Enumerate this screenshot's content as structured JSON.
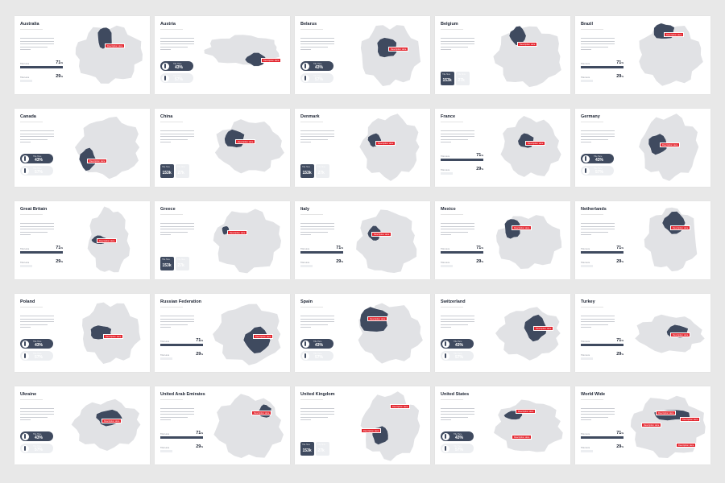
{
  "colors": {
    "accent_dark": "#3f4a5f",
    "accent_red": "#e3262f",
    "map_gray": "#e1e2e5",
    "faded": "#eceef1"
  },
  "slides": [
    {
      "title": "Australia",
      "stat_type": "bars",
      "tags": [
        "Description Here"
      ]
    },
    {
      "title": "Austria",
      "stat_type": "people",
      "tags": [
        "Description Here"
      ]
    },
    {
      "title": "Belarus",
      "stat_type": "people",
      "tags": [
        "Description Here"
      ]
    },
    {
      "title": "Belgium",
      "stat_type": "boxes",
      "tags": [
        "Description Here"
      ]
    },
    {
      "title": "Brazil",
      "stat_type": "bars",
      "tags": [
        "Description Here"
      ]
    },
    {
      "title": "Canada",
      "stat_type": "people",
      "tags": [
        "Description Here"
      ]
    },
    {
      "title": "China",
      "stat_type": "boxes",
      "tags": [
        "Description Here"
      ]
    },
    {
      "title": "Denmark",
      "stat_type": "boxes",
      "tags": [
        "Description Here"
      ]
    },
    {
      "title": "France",
      "stat_type": "bars",
      "tags": [
        "Description Here"
      ]
    },
    {
      "title": "Germany",
      "stat_type": "people",
      "tags": [
        "Description Here"
      ]
    },
    {
      "title": "Great Britain",
      "stat_type": "bars",
      "tags": [
        "Description Here"
      ]
    },
    {
      "title": "Greece",
      "stat_type": "boxes",
      "tags": [
        "Description Here"
      ]
    },
    {
      "title": "Italy",
      "stat_type": "bars",
      "tags": [
        "Description Here"
      ]
    },
    {
      "title": "Mexico",
      "stat_type": "bars",
      "tags": [
        "Description Here"
      ]
    },
    {
      "title": "Netherlands",
      "stat_type": "bars",
      "tags": [
        "Description Here"
      ]
    },
    {
      "title": "Poland",
      "stat_type": "people",
      "tags": [
        "Description Here"
      ]
    },
    {
      "title": "Russian Federation",
      "stat_type": "bars",
      "tags": [
        "Description Here"
      ]
    },
    {
      "title": "Spain",
      "stat_type": "people",
      "tags": [
        "Description Here"
      ]
    },
    {
      "title": "Switzerland",
      "stat_type": "people",
      "tags": [
        "Description Here"
      ]
    },
    {
      "title": "Turkey",
      "stat_type": "bars",
      "tags": [
        "Description Here"
      ]
    },
    {
      "title": "Ukraine",
      "stat_type": "people",
      "tags": [
        "Description Here"
      ]
    },
    {
      "title": "United Arab Emirates",
      "stat_type": "bars",
      "tags": [
        "Description Here"
      ]
    },
    {
      "title": "United Kingdom",
      "stat_type": "boxes",
      "tags": [
        "Description Here",
        "Description Here"
      ]
    },
    {
      "title": "United States",
      "stat_type": "people",
      "tags": [
        "Description Here",
        "Description Here"
      ]
    },
    {
      "title": "World Wide",
      "stat_type": "bars",
      "tags": [
        "Description Here",
        "Description Here",
        "Description Here",
        "Description Here"
      ]
    }
  ],
  "stats": {
    "bars": [
      {
        "label": "Title Here",
        "value": "71",
        "unit": "%",
        "percent": 71
      },
      {
        "label": "Title Here",
        "value": "29",
        "unit": "%",
        "percent": 29
      }
    ],
    "people": [
      {
        "label": "Title Here",
        "value": "43%"
      },
      {
        "label": "Title Here",
        "value": "57%"
      }
    ],
    "boxes": [
      {
        "label": "Title Here",
        "value": "153k"
      },
      {
        "label": "Title Here",
        "value": "27k"
      }
    ]
  }
}
